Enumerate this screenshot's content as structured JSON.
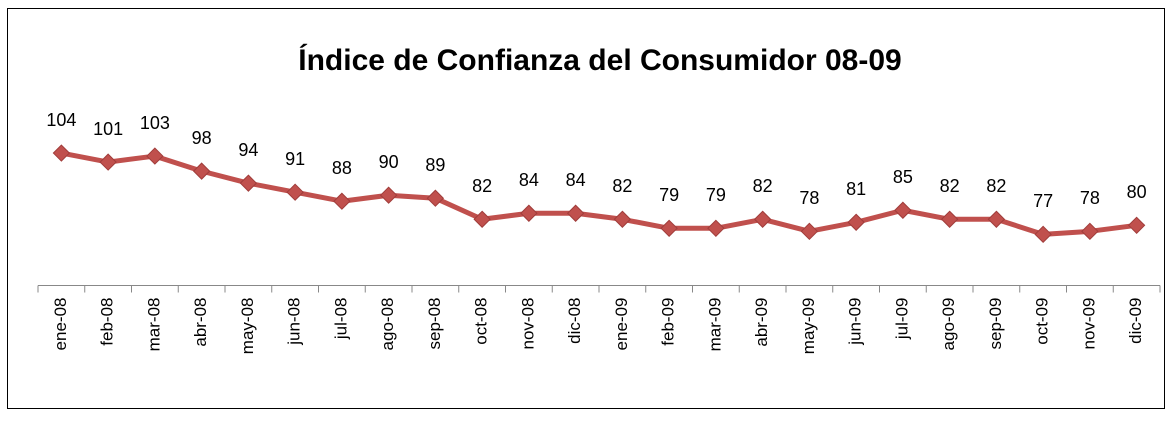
{
  "chart_data": {
    "type": "line",
    "title": "Índice de Confianza del Consumidor 08-09",
    "categories": [
      "ene-08",
      "feb-08",
      "mar-08",
      "abr-08",
      "may-08",
      "jun-08",
      "jul-08",
      "ago-08",
      "sep-08",
      "oct-08",
      "nov-08",
      "dic-08",
      "ene-09",
      "feb-09",
      "mar-09",
      "abr-09",
      "may-09",
      "jun-09",
      "jul-09",
      "ago-09",
      "sep-09",
      "oct-09",
      "nov-09",
      "dic-09"
    ],
    "series": [
      {
        "name": "Índice",
        "color": "#c0504d",
        "values": [
          104,
          101,
          103,
          98,
          94,
          91,
          88,
          90,
          89,
          82,
          84,
          84,
          82,
          79,
          79,
          82,
          78,
          81,
          85,
          82,
          82,
          77,
          78,
          80
        ]
      }
    ],
    "ylim": [
      60,
      110
    ]
  }
}
